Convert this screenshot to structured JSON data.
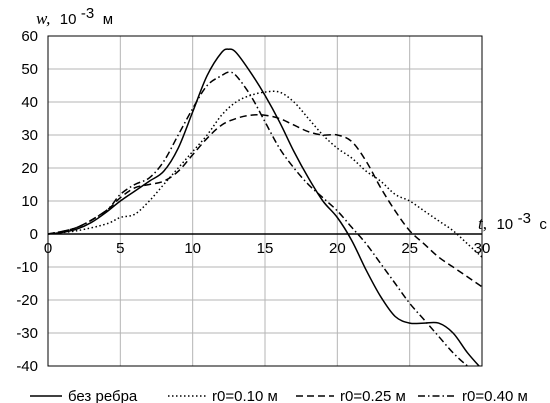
{
  "chart_data": {
    "type": "line",
    "ylabel": {
      "var": "w,",
      "unit_base": "10",
      "unit_exp": "-3",
      "unit_suffix": "м"
    },
    "xlabel": {
      "var": "t,",
      "unit_base": "10",
      "unit_exp": "-3",
      "unit_suffix": "с"
    },
    "xlim": [
      0,
      30
    ],
    "ylim": [
      -40,
      60
    ],
    "x_ticks": [
      0,
      5,
      10,
      15,
      20,
      25,
      30
    ],
    "y_ticks": [
      -40,
      -30,
      -20,
      -10,
      0,
      10,
      20,
      30,
      40,
      50,
      60
    ],
    "x_tick_labels": [
      "0",
      "5",
      "10",
      "15",
      "20",
      "25",
      "30"
    ],
    "y_tick_labels": [
      "-40",
      "-30",
      "-20",
      "-10",
      "0",
      "10",
      "20",
      "30",
      "40",
      "50",
      "60"
    ],
    "grid": true,
    "legend_position": "bottom",
    "series": [
      {
        "name": "без ребра",
        "style": "solid",
        "color": "#000000",
        "x": [
          0,
          1,
          2,
          3,
          4,
          5,
          6,
          7,
          8,
          9,
          10,
          11,
          12,
          12.5,
          13,
          14,
          15,
          16,
          17,
          18,
          19,
          20,
          21,
          22,
          23,
          24,
          25,
          26,
          27,
          28,
          29,
          30
        ],
        "y": [
          0,
          0.5,
          1.5,
          3.5,
          6.5,
          10,
          13,
          16,
          19,
          26,
          37,
          48,
          55,
          56,
          55,
          49,
          42,
          34,
          25,
          17,
          10,
          5,
          -2,
          -11,
          -19,
          -25,
          -27,
          -27,
          -27,
          -30,
          -36,
          -41
        ]
      },
      {
        "name": "r0=0.10 м",
        "style": "dotted",
        "color": "#000000",
        "x": [
          0,
          2,
          4,
          5,
          6,
          7,
          8,
          9,
          10,
          11,
          12,
          13,
          14,
          15,
          16,
          17,
          18,
          19,
          20,
          21,
          22,
          23,
          24,
          25,
          26,
          27,
          28,
          29,
          30
        ],
        "y": [
          0,
          1,
          3,
          5,
          6,
          10,
          15,
          20,
          25,
          30,
          36,
          40,
          42,
          43,
          43,
          40,
          35,
          30,
          26,
          23,
          19,
          16,
          12,
          10,
          7,
          4,
          1,
          -3,
          -7
        ]
      },
      {
        "name": "r0=0.25 м",
        "style": "dashed",
        "color": "#000000",
        "x": [
          0,
          2,
          4,
          5,
          6,
          7,
          8,
          9,
          10,
          11,
          12,
          13,
          14,
          15,
          16,
          17,
          18,
          19,
          20,
          21,
          22,
          23,
          24,
          25,
          26,
          27,
          28,
          29,
          30
        ],
        "y": [
          0,
          2,
          7,
          11,
          14,
          15,
          16,
          19,
          24,
          29,
          33,
          35,
          36,
          36,
          35,
          33,
          31,
          30,
          30,
          28,
          22,
          14,
          7,
          1,
          -3,
          -7,
          -10,
          -13,
          -16
        ]
      },
      {
        "name": "r0=0.40 м",
        "style": "dashdot",
        "color": "#000000",
        "x": [
          0,
          2,
          4,
          5,
          6,
          7,
          8,
          9,
          10,
          11,
          12,
          12.5,
          13,
          14,
          15,
          16,
          17,
          18,
          19,
          20,
          21,
          22,
          23,
          24,
          25,
          26,
          27,
          28,
          29,
          30
        ],
        "y": [
          0,
          2,
          7,
          12,
          15,
          17,
          22,
          30,
          38,
          45,
          48,
          49,
          48,
          42,
          34,
          26,
          20,
          15,
          11,
          7,
          2,
          -3,
          -9,
          -15,
          -21,
          -26,
          -31,
          -36,
          -40,
          -43
        ]
      }
    ]
  }
}
